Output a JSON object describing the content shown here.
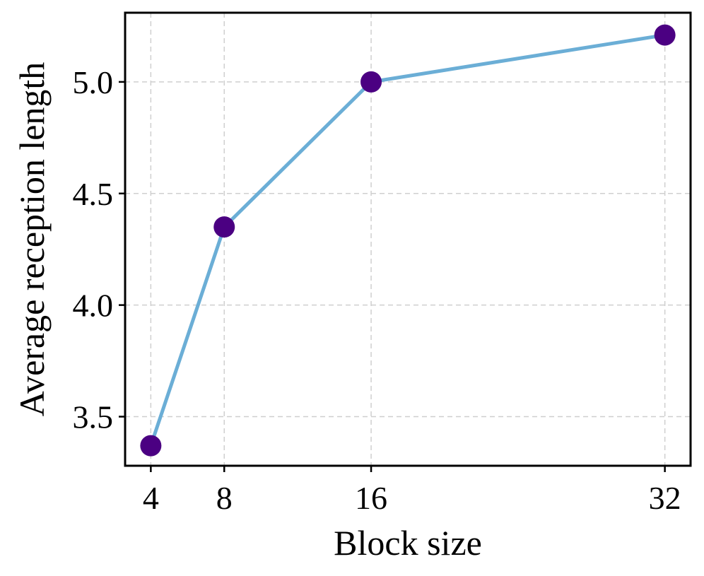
{
  "chart_data": {
    "type": "line",
    "xlabel": "Block size",
    "ylabel": "Average reception length",
    "x": [
      4,
      8,
      16,
      32
    ],
    "x_tick_labels": [
      "4",
      "8",
      "16",
      "32"
    ],
    "y_ticks": [
      3.5,
      4.0,
      4.5,
      5.0
    ],
    "y_tick_labels": [
      "3.5",
      "4.0",
      "4.5",
      "5.0"
    ],
    "xlim": [
      2.6,
      33.4
    ],
    "ylim": [
      3.28,
      5.31
    ],
    "series": [
      {
        "values": [
          3.37,
          4.35,
          5.0,
          5.21
        ],
        "line_color": "#6baed6",
        "marker_color": "#4b0082"
      }
    ],
    "grid": true,
    "legend": "none"
  }
}
